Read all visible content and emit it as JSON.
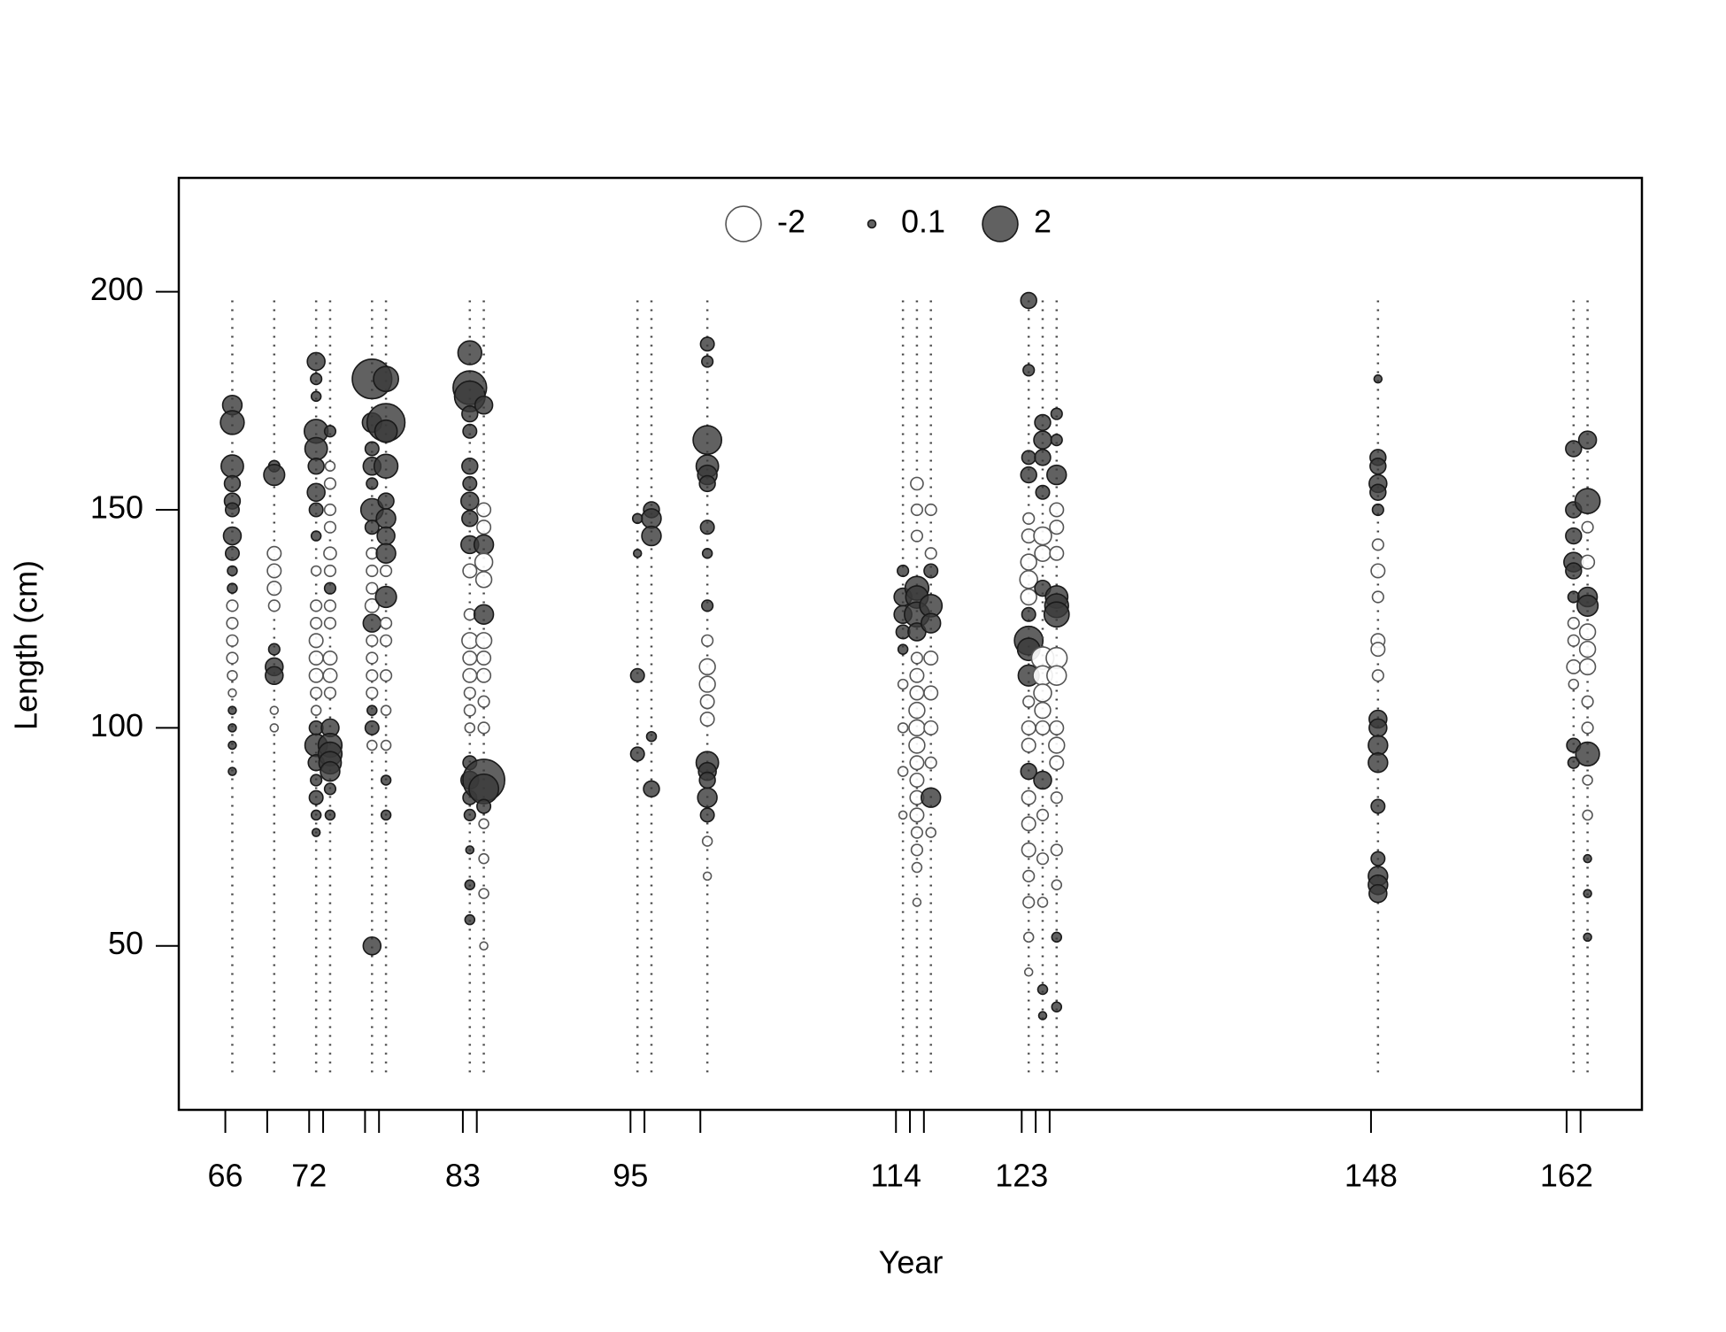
{
  "chart_data": {
    "type": "bubble",
    "xlabel": "Year",
    "ylabel": "Length (cm)",
    "xlim": [
      62.67,
      167.39
    ],
    "ylim": [
      12.4,
      226.1
    ],
    "xticks": [
      66,
      {
        "value": 69,
        "label": null
      },
      72,
      {
        "value": 73,
        "label": null
      },
      {
        "value": 76,
        "label": null
      },
      {
        "value": 77,
        "label": null
      },
      83,
      {
        "value": 84,
        "label": null
      },
      95,
      {
        "value": 96,
        "label": null
      },
      {
        "value": 100,
        "label": null
      },
      114,
      {
        "value": 115,
        "label": null
      },
      {
        "value": 116,
        "label": null
      },
      123,
      {
        "value": 124,
        "label": null
      },
      {
        "value": 125,
        "label": null
      },
      148,
      162,
      {
        "value": 163,
        "label": null
      }
    ],
    "yticks": [
      50,
      100,
      150,
      200
    ],
    "legend": {
      "values": [
        -2,
        0.1,
        2
      ],
      "position": "top"
    },
    "color_positive": "#3a3a3a",
    "color_negative": "#ffffff",
    "length_range": [
      20,
      198
    ],
    "groups": [
      {
        "x": 66.5,
        "lengths": [
          174,
          170,
          160,
          156,
          152,
          150,
          144,
          140,
          136,
          132,
          128,
          124,
          120,
          116,
          112,
          108,
          104,
          100,
          96,
          90
        ],
        "residuals": [
          0.6,
          0.9,
          0.8,
          0.4,
          0.4,
          0.3,
          0.5,
          0.3,
          0.15,
          0.15,
          -0.2,
          -0.2,
          -0.2,
          -0.2,
          -0.15,
          -0.1,
          0.1,
          0.1,
          0.1,
          0.1
        ]
      },
      {
        "x": 69.5,
        "lengths": [
          160,
          158,
          140,
          136,
          132,
          128,
          118,
          114,
          112,
          104,
          100
        ],
        "residuals": [
          0.2,
          0.7,
          -0.3,
          -0.3,
          -0.3,
          -0.2,
          0.2,
          0.5,
          0.5,
          -0.1,
          -0.1
        ]
      },
      {
        "x": 72.5,
        "lengths": [
          184,
          180,
          176,
          168,
          164,
          160,
          154,
          150,
          144,
          136,
          128,
          124,
          120,
          116,
          112,
          108,
          104,
          100,
          96,
          92,
          88,
          84,
          80,
          76
        ],
        "residuals": [
          0.5,
          0.2,
          0.15,
          0.9,
          0.8,
          0.4,
          0.5,
          0.3,
          0.15,
          -0.15,
          -0.2,
          -0.2,
          -0.3,
          -0.3,
          -0.3,
          -0.2,
          -0.15,
          0.3,
          0.8,
          0.4,
          0.2,
          0.3,
          0.15,
          0.1
        ]
      },
      {
        "x": 73.5,
        "lengths": [
          168,
          160,
          156,
          150,
          146,
          140,
          136,
          132,
          128,
          124,
          116,
          112,
          108,
          100,
          96,
          94,
          92,
          90,
          86,
          80
        ],
        "residuals": [
          0.2,
          -0.15,
          -0.2,
          -0.2,
          -0.2,
          -0.25,
          -0.2,
          0.2,
          -0.2,
          -0.2,
          -0.3,
          -0.3,
          -0.2,
          0.5,
          0.9,
          0.9,
          0.8,
          0.6,
          0.2,
          0.15
        ]
      },
      {
        "x": 76.5,
        "lengths": [
          180,
          170,
          164,
          160,
          156,
          150,
          146,
          140,
          136,
          132,
          128,
          124,
          120,
          116,
          112,
          108,
          104,
          100,
          96,
          50
        ],
        "residuals": [
          2.5,
          0.6,
          0.3,
          0.5,
          0.2,
          0.8,
          0.3,
          -0.2,
          -0.2,
          -0.2,
          -0.3,
          0.5,
          -0.2,
          -0.2,
          -0.2,
          -0.2,
          0.15,
          0.3,
          -0.15,
          0.5
        ]
      },
      {
        "x": 77.5,
        "lengths": [
          180,
          170,
          168,
          160,
          152,
          148,
          144,
          140,
          136,
          130,
          124,
          120,
          112,
          104,
          96,
          88,
          80
        ],
        "residuals": [
          1.0,
          2.3,
          0.8,
          0.9,
          0.4,
          0.6,
          0.5,
          0.6,
          -0.2,
          0.7,
          -0.2,
          -0.2,
          -0.2,
          -0.15,
          -0.15,
          0.15,
          0.15
        ]
      },
      {
        "x": 83.5,
        "lengths": [
          186,
          178,
          176,
          172,
          168,
          160,
          156,
          152,
          148,
          142,
          136,
          126,
          120,
          116,
          112,
          108,
          104,
          100,
          92,
          88,
          84,
          80,
          72,
          64,
          56
        ],
        "residuals": [
          0.9,
          1.8,
          1.5,
          0.4,
          0.3,
          0.4,
          0.3,
          0.5,
          0.4,
          0.5,
          -0.3,
          -0.2,
          -0.4,
          -0.3,
          -0.3,
          -0.2,
          -0.2,
          -0.15,
          0.3,
          0.5,
          0.3,
          0.2,
          0.1,
          0.15,
          0.15
        ]
      },
      {
        "x": 84.5,
        "lengths": [
          174,
          150,
          146,
          142,
          138,
          134,
          126,
          120,
          116,
          112,
          106,
          100,
          88,
          86,
          82,
          78,
          70,
          62,
          50
        ],
        "residuals": [
          0.5,
          -0.3,
          -0.3,
          0.6,
          -0.5,
          -0.4,
          0.6,
          -0.4,
          -0.3,
          -0.3,
          -0.2,
          -0.2,
          2.8,
          1.4,
          0.3,
          -0.15,
          -0.15,
          -0.15,
          -0.1
        ]
      },
      {
        "x": 95.5,
        "lengths": [
          148,
          140,
          112,
          94
        ],
        "residuals": [
          0.15,
          0.1,
          0.3,
          0.3
        ]
      },
      {
        "x": 96.5,
        "lengths": [
          150,
          148,
          144,
          98,
          86
        ],
        "residuals": [
          0.4,
          0.6,
          0.6,
          0.15,
          0.4
        ]
      },
      {
        "x": 100.5,
        "lengths": [
          188,
          184,
          166,
          160,
          158,
          156,
          146,
          140,
          128,
          120,
          114,
          110,
          106,
          102,
          92,
          90,
          88,
          84,
          80,
          74,
          66
        ],
        "residuals": [
          0.3,
          0.2,
          1.3,
          0.8,
          0.6,
          0.4,
          0.3,
          0.15,
          0.2,
          -0.2,
          -0.4,
          -0.4,
          -0.3,
          -0.3,
          0.8,
          0.5,
          0.4,
          0.6,
          0.3,
          -0.15,
          -0.1
        ]
      },
      {
        "x": 114.5,
        "lengths": [
          136,
          130,
          126,
          122,
          118,
          110,
          100,
          90,
          80
        ],
        "residuals": [
          0.2,
          0.5,
          0.5,
          0.3,
          0.15,
          -0.15,
          -0.15,
          -0.15,
          -0.1
        ]
      },
      {
        "x": 115.5,
        "lengths": [
          156,
          150,
          144,
          132,
          130,
          126,
          122,
          116,
          112,
          108,
          104,
          100,
          96,
          92,
          88,
          84,
          80,
          76,
          72,
          68,
          60
        ],
        "residuals": [
          -0.25,
          -0.2,
          -0.2,
          0.9,
          0.8,
          1.0,
          0.5,
          -0.2,
          -0.3,
          -0.3,
          -0.4,
          -0.4,
          -0.4,
          -0.3,
          -0.3,
          -0.3,
          -0.3,
          -0.2,
          -0.2,
          -0.15,
          -0.1
        ]
      },
      {
        "x": 116.5,
        "lengths": [
          150,
          140,
          136,
          128,
          124,
          116,
          108,
          100,
          92,
          84,
          76
        ],
        "residuals": [
          -0.2,
          -0.2,
          0.3,
          0.8,
          0.6,
          -0.3,
          -0.3,
          -0.3,
          -0.2,
          0.6,
          -0.15
        ]
      },
      {
        "x": 123.5,
        "lengths": [
          198,
          182,
          162,
          158,
          148,
          144,
          138,
          134,
          130,
          126,
          120,
          118,
          112,
          106,
          100,
          96,
          90,
          84,
          78,
          72,
          66,
          60,
          52,
          44
        ],
        "residuals": [
          0.4,
          0.2,
          0.3,
          0.4,
          -0.2,
          -0.3,
          -0.4,
          -0.5,
          -0.4,
          0.3,
          1.3,
          0.8,
          0.7,
          -0.2,
          -0.3,
          -0.3,
          0.4,
          -0.3,
          -0.3,
          -0.3,
          -0.2,
          -0.2,
          -0.15,
          -0.1
        ]
      },
      {
        "x": 124.5,
        "lengths": [
          170,
          166,
          162,
          154,
          144,
          140,
          132,
          116,
          112,
          108,
          104,
          100,
          88,
          80,
          70,
          60,
          40,
          34
        ],
        "residuals": [
          0.4,
          0.5,
          0.4,
          0.3,
          -0.5,
          -0.4,
          0.4,
          -0.8,
          -0.6,
          -0.5,
          -0.4,
          -0.3,
          0.5,
          -0.2,
          -0.2,
          -0.15,
          0.15,
          0.1
        ]
      },
      {
        "x": 125.5,
        "lengths": [
          172,
          166,
          158,
          150,
          146,
          140,
          130,
          128,
          126,
          116,
          112,
          100,
          96,
          92,
          84,
          72,
          64,
          52,
          36
        ],
        "residuals": [
          0.2,
          0.2,
          0.6,
          -0.3,
          -0.3,
          -0.3,
          0.8,
          0.9,
          1.0,
          -0.7,
          -0.6,
          -0.3,
          -0.4,
          -0.3,
          -0.2,
          -0.2,
          -0.15,
          0.15,
          0.15
        ]
      },
      {
        "x": 148.5,
        "lengths": [
          180,
          162,
          160,
          156,
          154,
          150,
          142,
          136,
          130,
          120,
          118,
          112,
          102,
          100,
          96,
          92,
          82,
          70,
          66,
          64,
          62
        ],
        "residuals": [
          0.1,
          0.4,
          0.4,
          0.5,
          0.4,
          0.2,
          -0.2,
          -0.3,
          -0.2,
          -0.3,
          -0.3,
          -0.2,
          0.5,
          0.5,
          0.6,
          0.6,
          0.3,
          0.3,
          0.6,
          0.6,
          0.5
        ]
      },
      {
        "x": 162.5,
        "lengths": [
          164,
          150,
          144,
          138,
          136,
          130,
          124,
          120,
          114,
          110,
          96,
          92
        ],
        "residuals": [
          0.4,
          0.4,
          0.4,
          0.6,
          0.4,
          0.2,
          -0.2,
          -0.2,
          -0.3,
          -0.15,
          0.3,
          0.2
        ]
      },
      {
        "x": 163.5,
        "lengths": [
          166,
          152,
          146,
          138,
          130,
          128,
          122,
          118,
          114,
          106,
          100,
          94,
          88,
          80,
          70,
          62,
          52
        ],
        "residuals": [
          0.5,
          1.0,
          -0.2,
          -0.3,
          0.6,
          0.7,
          -0.4,
          -0.4,
          -0.4,
          -0.2,
          -0.2,
          0.9,
          -0.15,
          -0.15,
          0.1,
          0.1,
          0.1
        ]
      }
    ]
  }
}
